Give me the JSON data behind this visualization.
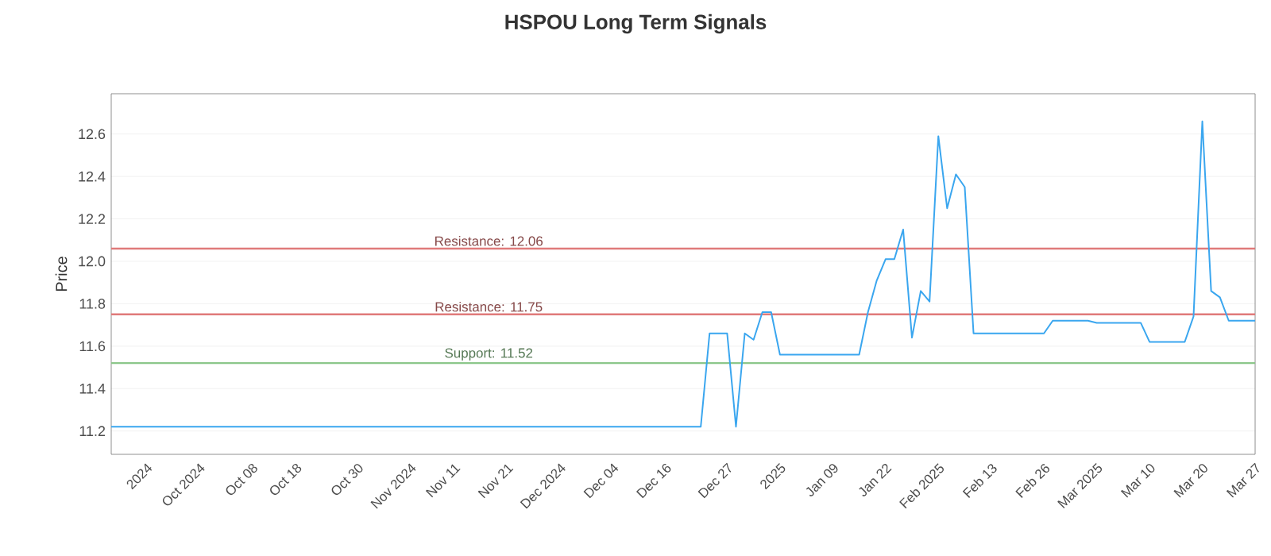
{
  "chart_data": {
    "type": "line",
    "title": "HSPOU Long Term Signals",
    "ylabel": "Price",
    "categories": [
      null,
      null,
      null,
      null,
      "2024",
      null,
      null,
      null,
      null,
      null,
      "Oct 2024",
      null,
      null,
      null,
      null,
      null,
      "Oct 08",
      null,
      null,
      null,
      null,
      "Oct 18",
      null,
      null,
      null,
      null,
      null,
      null,
      "Oct 30",
      null,
      null,
      null,
      null,
      null,
      "Nov 2024",
      null,
      null,
      null,
      null,
      "Nov 11",
      null,
      null,
      null,
      null,
      null,
      "Nov 21",
      null,
      null,
      null,
      null,
      null,
      "Dec 2024",
      null,
      null,
      null,
      null,
      null,
      "Dec 04",
      null,
      null,
      null,
      null,
      null,
      "Dec 16",
      null,
      null,
      null,
      null,
      null,
      null,
      "Dec 27",
      null,
      null,
      null,
      null,
      null,
      "2025",
      null,
      null,
      null,
      null,
      null,
      "Jan 09",
      null,
      null,
      null,
      null,
      null,
      "Jan 22",
      null,
      null,
      null,
      null,
      null,
      "Feb 2025",
      null,
      null,
      null,
      null,
      null,
      "Feb 13",
      null,
      null,
      null,
      null,
      null,
      "Feb 26",
      null,
      null,
      null,
      null,
      null,
      "Mar 2025",
      null,
      null,
      null,
      null,
      null,
      "Mar 10",
      null,
      null,
      null,
      null,
      null,
      "Mar 20",
      null,
      null,
      null,
      null,
      null,
      "Mar 27"
    ],
    "series": [
      {
        "color": "#3aa6ef",
        "values": [
          11.22,
          11.22,
          11.22,
          11.22,
          11.22,
          11.22,
          11.22,
          11.22,
          11.22,
          11.22,
          11.22,
          11.22,
          11.22,
          11.22,
          11.22,
          11.22,
          11.22,
          11.22,
          11.22,
          11.22,
          11.22,
          11.22,
          11.22,
          11.22,
          11.22,
          11.22,
          11.22,
          11.22,
          11.22,
          11.22,
          11.22,
          11.22,
          11.22,
          11.22,
          11.22,
          11.22,
          11.22,
          11.22,
          11.22,
          11.22,
          11.22,
          11.22,
          11.22,
          11.22,
          11.22,
          11.22,
          11.22,
          11.22,
          11.22,
          11.22,
          11.22,
          11.22,
          11.22,
          11.22,
          11.22,
          11.22,
          11.22,
          11.22,
          11.22,
          11.22,
          11.22,
          11.22,
          11.22,
          11.22,
          11.22,
          11.22,
          11.22,
          11.22,
          11.66,
          11.66,
          11.66,
          11.22,
          11.66,
          11.63,
          11.76,
          11.76,
          11.56,
          11.56,
          11.56,
          11.56,
          11.56,
          11.56,
          11.56,
          11.56,
          11.56,
          11.56,
          11.76,
          11.91,
          12.01,
          12.01,
          12.15,
          11.64,
          11.86,
          11.81,
          12.59,
          12.25,
          12.41,
          12.35,
          11.66,
          11.66,
          11.66,
          11.66,
          11.66,
          11.66,
          11.66,
          11.66,
          11.66,
          11.72,
          11.72,
          11.72,
          11.72,
          11.72,
          11.71,
          11.71,
          11.71,
          11.71,
          11.71,
          11.71,
          11.62,
          11.62,
          11.62,
          11.62,
          11.62,
          11.74,
          12.66,
          11.86,
          11.83,
          11.72,
          11.72,
          11.72,
          11.72
        ]
      }
    ],
    "ylim": [
      11.09,
      12.79
    ],
    "yticks": [
      11.2,
      11.4,
      11.6,
      11.8,
      {
        "value": 12.0,
        "label": "12.0"
      },
      12.2,
      12.4,
      12.6
    ],
    "grid": "y",
    "ref_lines": [
      {
        "axis": "y",
        "value": 12.06,
        "label": "Resistance: 12.06",
        "color": "#e07a7a"
      },
      {
        "axis": "y",
        "value": 11.75,
        "label": "Resistance: 11.75",
        "color": "#e07a7a"
      },
      {
        "axis": "y",
        "value": 11.52,
        "label": "Support: 11.52",
        "color": "#8cc78a"
      }
    ]
  }
}
